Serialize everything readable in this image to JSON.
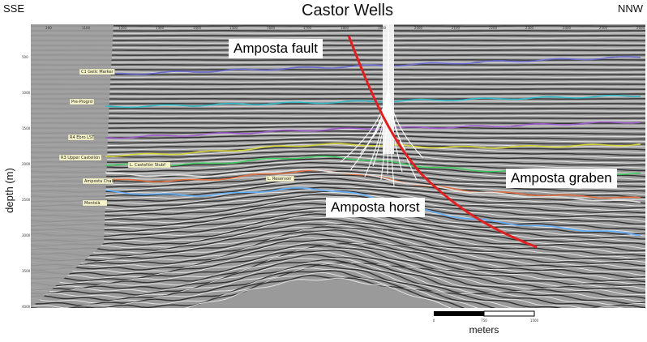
{
  "header": {
    "left_direction": "SSE",
    "title": "Castor Wells",
    "right_direction": "NNW"
  },
  "axis": {
    "ylabel": "depth (m)",
    "y_ticks": [
      "500",
      "1000",
      "1500",
      "2000",
      "2500",
      "3000",
      "3500",
      "4000"
    ],
    "x_ticks": [
      "200",
      "1100",
      "1200",
      "1300",
      "1400",
      "1500",
      "1600",
      "1700",
      "1800",
      "1900",
      "2000",
      "2100",
      "2200",
      "2300",
      "2400",
      "2500",
      "2600"
    ]
  },
  "annotations": {
    "fault": "Amposta fault",
    "horst": "Amposta horst",
    "graben": "Amposta graben"
  },
  "horizons": [
    {
      "label": "C1 Gelic Marker",
      "color": "#6a6ad0"
    },
    {
      "label": "Pre-Progrd",
      "color": "#2fb8c8"
    },
    {
      "label": "R4 Ebro LST",
      "color": "#a05ad0"
    },
    {
      "label": "R3 Upper Castellón",
      "color": "#d8d83a"
    },
    {
      "label": "L. Castellón Stubf",
      "color": "#40c860"
    },
    {
      "label": "Amposta Chalk",
      "color": "#e07040"
    },
    {
      "label": "L. Reservoir",
      "color": "#e0e0e0"
    },
    {
      "label": "Montsià",
      "color": "#60b0ff"
    }
  ],
  "scale": {
    "ticks": [
      "0",
      "750",
      "1500"
    ],
    "unit": "meters"
  },
  "colors": {
    "fault": "#e02020",
    "accent_teal": "#2fb8c8"
  }
}
